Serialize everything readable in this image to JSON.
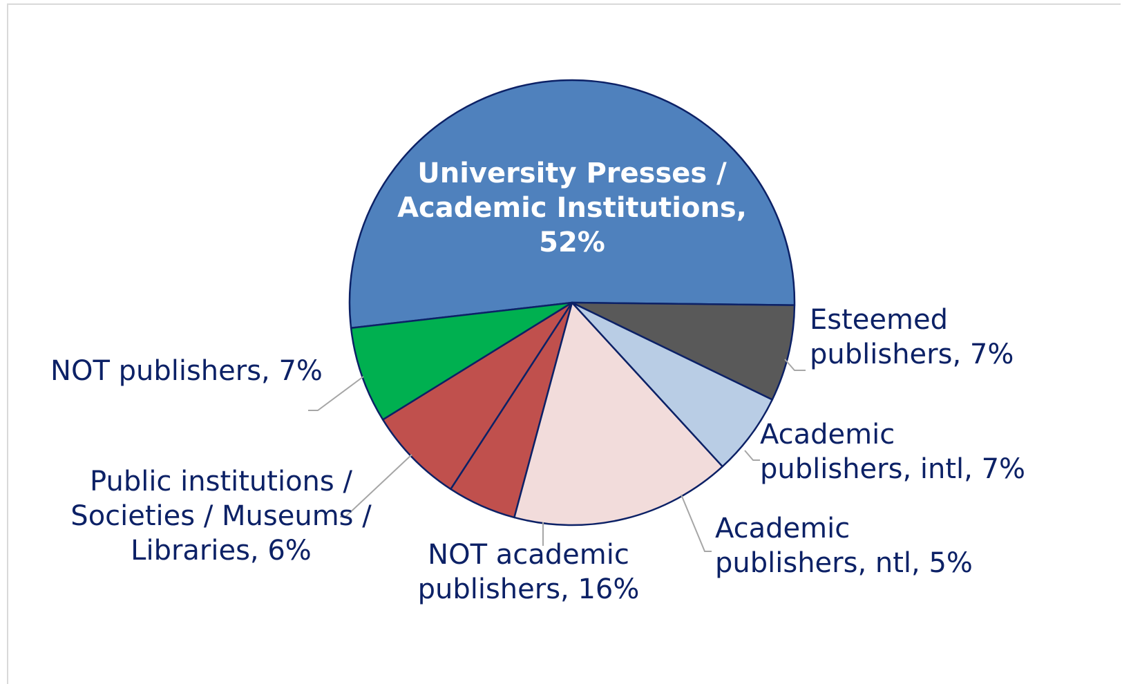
{
  "chart_data": {
    "type": "pie",
    "title": "",
    "slices": [
      {
        "label": [
          "University Presses /",
          "Academic Institutions,",
          "52%"
        ],
        "value": 52,
        "color": "#4f81bd",
        "label_style": "inside"
      },
      {
        "label": [
          "Esteemed",
          "publishers, 7%"
        ],
        "value": 7,
        "color": "#00b050",
        "label_style": "outside"
      },
      {
        "label": [
          "Academic",
          "publishers, intl, 7%"
        ],
        "value": 7,
        "color": "#c0504d",
        "label_style": "outside"
      },
      {
        "label": [
          "Academic",
          "publishers, ntl, 5%"
        ],
        "value": 5,
        "color": "#c0504d",
        "label_style": "outside"
      },
      {
        "label": [
          "NOT academic",
          "publishers, 16%"
        ],
        "value": 16,
        "color": "#f2dcdb",
        "label_style": "outside"
      },
      {
        "label": [
          "Public institutions /",
          "Societies / Museums /",
          "Libraries, 6%"
        ],
        "value": 6,
        "color": "#b9cde5",
        "label_style": "outside"
      },
      {
        "label": [
          "NOT publishers, 7%"
        ],
        "value": 7,
        "color": "#595959",
        "label_style": "outside"
      }
    ],
    "legend": "none",
    "label_color": "#0c2166",
    "slice_border_color": "#0c2166"
  }
}
